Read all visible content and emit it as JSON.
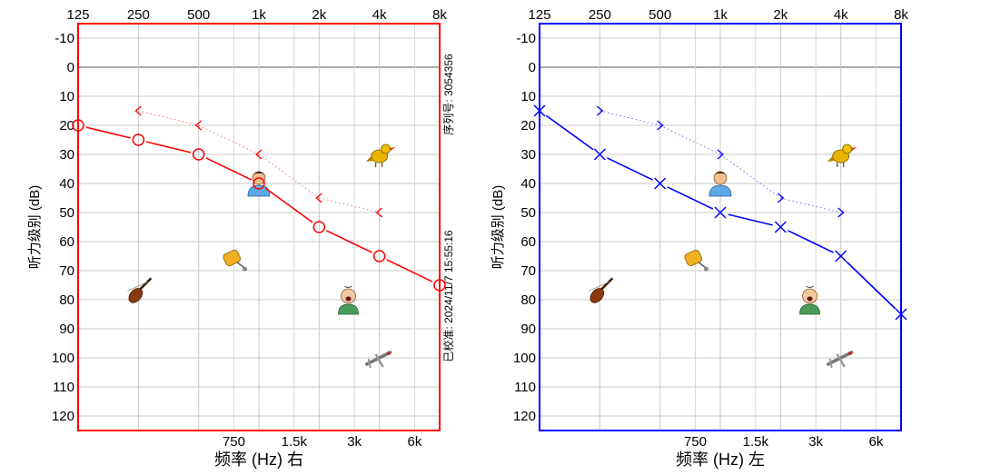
{
  "chart_data": [
    {
      "type": "line",
      "title": "",
      "ear": "right",
      "xlabel": "频率 (Hz) 右",
      "ylabel": "听力级别 (dB)",
      "color": "#ff0000",
      "ylim": [
        -10,
        120
      ],
      "y_ticks": [
        -10,
        0,
        10,
        20,
        30,
        40,
        50,
        60,
        70,
        80,
        90,
        100,
        110,
        120
      ],
      "top_freqs": [
        "125",
        "250",
        "500",
        "1k",
        "2k",
        "4k",
        "8k"
      ],
      "bottom_freqs": [
        "750",
        "1.5k",
        "3k",
        "6k"
      ],
      "side_labels": [
        "序列号: 3054356",
        "已校准: 2024/11/7 15:55:16"
      ],
      "series": [
        {
          "name": "air",
          "marker": "circle",
          "x": [
            "125",
            "250",
            "500",
            "1k",
            "2k",
            "4k",
            "8k"
          ],
          "values": [
            20,
            25,
            30,
            40,
            55,
            65,
            75
          ]
        },
        {
          "name": "bone",
          "marker": "lt",
          "x": [
            "250",
            "500",
            "1k",
            "2k",
            "4k"
          ],
          "values": [
            15,
            20,
            30,
            45,
            50
          ]
        }
      ],
      "icons": [
        {
          "name": "bird-icon",
          "freq": "4k",
          "db": 30
        },
        {
          "name": "person-icon",
          "freq": "1k",
          "db": 40
        },
        {
          "name": "phone-icon",
          "freq": "750",
          "db": 66
        },
        {
          "name": "violin-icon",
          "freq": "250",
          "db": 77
        },
        {
          "name": "baby-icon",
          "freq": "2.8k",
          "db": 80
        },
        {
          "name": "airplane-icon",
          "freq": "4k",
          "db": 100
        }
      ]
    },
    {
      "type": "line",
      "title": "",
      "ear": "left",
      "xlabel": "频率 (Hz) 左",
      "ylabel": "听力级别 (dB)",
      "color": "#0000ff",
      "ylim": [
        -10,
        120
      ],
      "y_ticks": [
        -10,
        0,
        10,
        20,
        30,
        40,
        50,
        60,
        70,
        80,
        90,
        100,
        110,
        120
      ],
      "top_freqs": [
        "125",
        "250",
        "500",
        "1k",
        "2k",
        "4k",
        "8k"
      ],
      "bottom_freqs": [
        "750",
        "1.5k",
        "3k",
        "6k"
      ],
      "side_labels": [],
      "series": [
        {
          "name": "air",
          "marker": "x",
          "x": [
            "125",
            "250",
            "500",
            "1k",
            "2k",
            "4k",
            "8k"
          ],
          "values": [
            15,
            30,
            40,
            50,
            55,
            65,
            85
          ]
        },
        {
          "name": "bone",
          "marker": "gt",
          "x": [
            "250",
            "500",
            "1k",
            "2k",
            "4k"
          ],
          "values": [
            15,
            20,
            30,
            45,
            50
          ]
        }
      ],
      "icons": [
        {
          "name": "bird-icon",
          "freq": "4k",
          "db": 30
        },
        {
          "name": "person-icon",
          "freq": "1k",
          "db": 40
        },
        {
          "name": "phone-icon",
          "freq": "750",
          "db": 66
        },
        {
          "name": "violin-icon",
          "freq": "250",
          "db": 77
        },
        {
          "name": "baby-icon",
          "freq": "2.8k",
          "db": 80
        },
        {
          "name": "airplane-icon",
          "freq": "4k",
          "db": 100
        }
      ]
    }
  ]
}
